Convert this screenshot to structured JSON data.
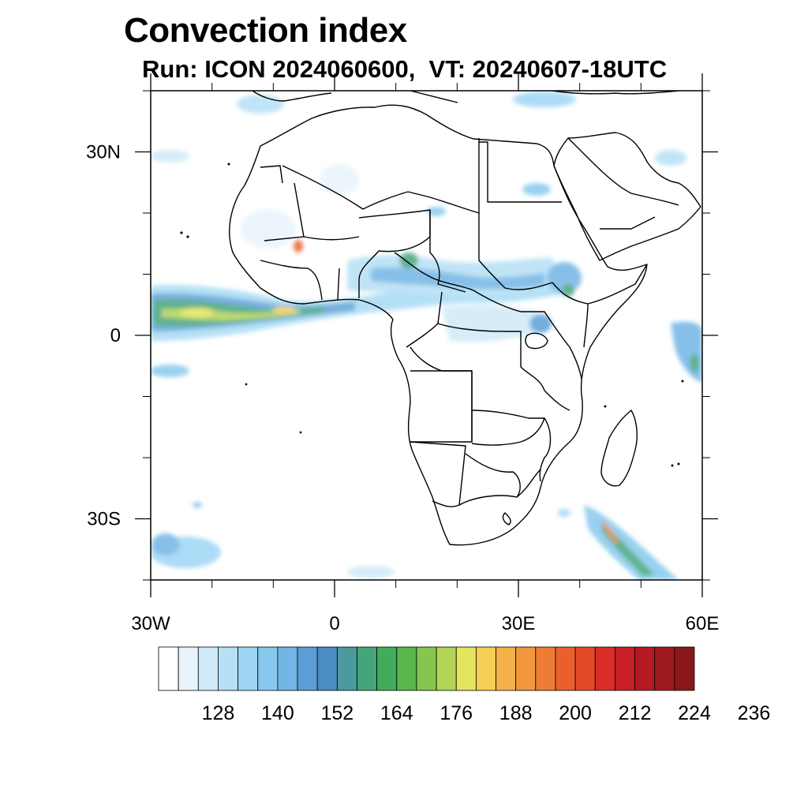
{
  "title": "Convection index",
  "subtitle": "Run: ICON 2024060600,  VT: 20240607-18UTC",
  "map": {
    "lon_range": [
      -30,
      60
    ],
    "lat_range": [
      -40,
      40
    ],
    "lat_ticks": [
      {
        "value": 30,
        "label": "30N"
      },
      {
        "value": 0,
        "label": "0"
      },
      {
        "value": -30,
        "label": "30S"
      }
    ],
    "lon_ticks": [
      {
        "value": -30,
        "label": "30W"
      },
      {
        "value": 0,
        "label": "0"
      },
      {
        "value": 30,
        "label": "30E"
      },
      {
        "value": 60,
        "label": "60E"
      }
    ],
    "minor_lat_ticks": [
      40,
      20,
      10,
      -10,
      -20,
      -40
    ],
    "minor_lon_ticks": [
      -20,
      -10,
      10,
      20,
      40,
      50
    ]
  },
  "colorbar": {
    "colors": [
      "#ffffff",
      "#e8f4fb",
      "#cfe9f7",
      "#b6e0f5",
      "#9ed6f4",
      "#87c9ee",
      "#72b6e6",
      "#5b9fd6",
      "#4a8cc4",
      "#4a9a9e",
      "#45a57a",
      "#41ad5a",
      "#58b84a",
      "#86c64e",
      "#b2d455",
      "#e5e45d",
      "#f6cf57",
      "#f5b24a",
      "#f2973e",
      "#ee7c34",
      "#e9602c",
      "#e24a28",
      "#d92e27",
      "#c91f26",
      "#b51a24",
      "#9e1a1f",
      "#8a1619"
    ],
    "labels": [
      "128",
      "140",
      "152",
      "164",
      "176",
      "188",
      "200",
      "212",
      "224",
      "236"
    ]
  }
}
